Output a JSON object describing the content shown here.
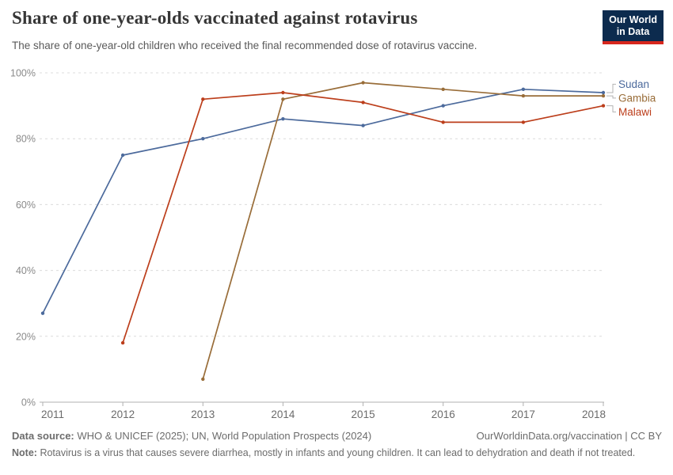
{
  "header": {
    "title": "Share of one-year-olds vaccinated against rotavirus",
    "subtitle": "The share of one-year-old children who received the final recommended dose of rotavirus vaccine.",
    "logo": {
      "line1": "Our World",
      "line2": "in Data",
      "bg_color": "#0c2b4e",
      "stripe_color": "#d7271d"
    }
  },
  "chart_data": {
    "type": "line",
    "x": [
      2011,
      2012,
      2013,
      2014,
      2015,
      2016,
      2017,
      2018
    ],
    "series": [
      {
        "name": "Sudan",
        "color": "#4C6A9C",
        "values": [
          27,
          75,
          80,
          86,
          84,
          90,
          95,
          94
        ]
      },
      {
        "name": "Gambia",
        "color": "#996D39",
        "values": [
          null,
          null,
          7,
          92,
          97,
          95,
          93,
          93
        ]
      },
      {
        "name": "Malawi",
        "color": "#BC3E1B",
        "values": [
          null,
          18,
          92,
          94,
          91,
          85,
          85,
          90
        ]
      }
    ],
    "ylim": [
      0,
      100
    ],
    "yticks": [
      0,
      20,
      40,
      60,
      80,
      100
    ],
    "ytick_suffix": "%",
    "grid": "horizontal-dashed",
    "legend_position": "right-of-line-ends",
    "marker": "dot",
    "styles": {
      "grid_color": "#dcdcdc",
      "axis_color": "#b0b0b0",
      "ytick_label_color": "#8a8a8a",
      "xtick_label_color": "#6b6b6b",
      "connector_color": "#b3b3b3"
    }
  },
  "footer": {
    "datasource_label": "Data source:",
    "datasource_text": "WHO & UNICEF (2025); UN, World Population Prospects (2024)",
    "attribution": "OurWorldinData.org/vaccination | CC BY",
    "note_label": "Note:",
    "note_text": "Rotavirus is a virus that causes severe diarrhea, mostly in infants and young children. It can lead to dehydration and death if not treated."
  }
}
